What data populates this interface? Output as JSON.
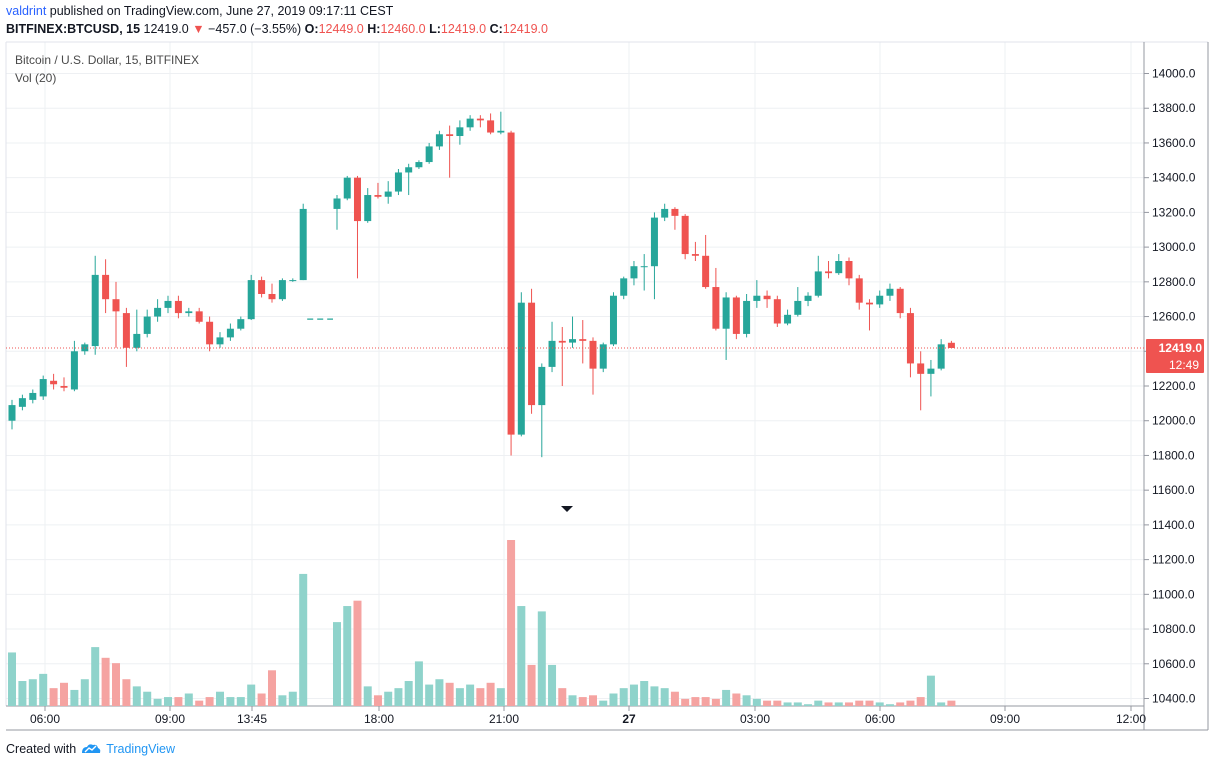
{
  "header": {
    "user": "valdrint",
    "published_text": "published on TradingView.com, June 27, 2019 09:17:11 CEST",
    "symbol": "BITFINEX:BTCUSD, 15",
    "last": "12419.0",
    "change": "−457.0 (−3.55%)",
    "o_label": "O:",
    "o_value": "12449.0",
    "h_label": "H:",
    "h_value": "12460.0",
    "l_label": "L:",
    "l_value": "12419.0",
    "c_label": "C:",
    "c_value": "12419.0"
  },
  "legend": {
    "title": "Bitcoin / U.S. Dollar, 15, BITFINEX",
    "volume": "Vol (20)"
  },
  "price_badge": {
    "price": "12419.0",
    "countdown": "12:49"
  },
  "footer": {
    "created_with": "Created with",
    "brand": "TradingView"
  },
  "colors": {
    "up": "#26a69a",
    "down": "#ef5350",
    "up_vol": "#8fd3cb",
    "down_vol": "#f5a3a1",
    "grid": "#eef0f3"
  },
  "chart_data": {
    "type": "candlestick",
    "interval": "15",
    "y_ticks": [
      10400,
      10600,
      10800,
      11000,
      11200,
      11400,
      11600,
      11800,
      12000,
      12200,
      12400,
      12600,
      12800,
      13000,
      13200,
      13400,
      13600,
      13800,
      14000
    ],
    "ylim": [
      10360,
      14110
    ],
    "x_tick_labels": [
      "06:00",
      "09:00",
      "13:45",
      "18:00",
      "21:00",
      "27",
      "03:00",
      "06:00",
      "09:00",
      "12:00"
    ],
    "current_price": 12419.0,
    "gap_after_index": 28,
    "gap_level": 12585,
    "candles": [
      {
        "o": 12000,
        "h": 12120,
        "l": 11950,
        "c": 12090
      },
      {
        "o": 12080,
        "h": 12150,
        "l": 12060,
        "c": 12130
      },
      {
        "o": 12120,
        "h": 12180,
        "l": 12100,
        "c": 12160
      },
      {
        "o": 12140,
        "h": 12260,
        "l": 12120,
        "c": 12240
      },
      {
        "o": 12230,
        "h": 12270,
        "l": 12180,
        "c": 12210
      },
      {
        "o": 12200,
        "h": 12250,
        "l": 12170,
        "c": 12190
      },
      {
        "o": 12180,
        "h": 12460,
        "l": 12170,
        "c": 12400
      },
      {
        "o": 12400,
        "h": 12450,
        "l": 12380,
        "c": 12440
      },
      {
        "o": 12430,
        "h": 12950,
        "l": 12380,
        "c": 12840
      },
      {
        "o": 12840,
        "h": 12930,
        "l": 12620,
        "c": 12700
      },
      {
        "o": 12700,
        "h": 12800,
        "l": 12420,
        "c": 12630
      },
      {
        "o": 12620,
        "h": 12650,
        "l": 12310,
        "c": 12420
      },
      {
        "o": 12420,
        "h": 12640,
        "l": 12400,
        "c": 12500
      },
      {
        "o": 12500,
        "h": 12640,
        "l": 12480,
        "c": 12600
      },
      {
        "o": 12600,
        "h": 12700,
        "l": 12570,
        "c": 12650
      },
      {
        "o": 12650,
        "h": 12720,
        "l": 12620,
        "c": 12690
      },
      {
        "o": 12690,
        "h": 12720,
        "l": 12590,
        "c": 12620
      },
      {
        "o": 12620,
        "h": 12650,
        "l": 12600,
        "c": 12630
      },
      {
        "o": 12630,
        "h": 12650,
        "l": 12560,
        "c": 12570
      },
      {
        "o": 12570,
        "h": 12600,
        "l": 12400,
        "c": 12440
      },
      {
        "o": 12440,
        "h": 12510,
        "l": 12420,
        "c": 12480
      },
      {
        "o": 12480,
        "h": 12560,
        "l": 12460,
        "c": 12530
      },
      {
        "o": 12530,
        "h": 12600,
        "l": 12520,
        "c": 12585
      },
      {
        "o": 12585,
        "h": 12840,
        "l": 12580,
        "c": 12810
      },
      {
        "o": 12810,
        "h": 12830,
        "l": 12710,
        "c": 12730
      },
      {
        "o": 12730,
        "h": 12790,
        "l": 12680,
        "c": 12700
      },
      {
        "o": 12700,
        "h": 12820,
        "l": 12690,
        "c": 12810
      },
      {
        "o": 12810,
        "h": 12820,
        "l": 12800,
        "c": 12810
      },
      {
        "o": 12810,
        "h": 13250,
        "l": 12810,
        "c": 13220
      },
      {
        "o": 13220,
        "h": 13300,
        "l": 13100,
        "c": 13280
      },
      {
        "o": 13280,
        "h": 13410,
        "l": 13270,
        "c": 13400
      },
      {
        "o": 13400,
        "h": 13410,
        "l": 12820,
        "c": 13150
      },
      {
        "o": 13150,
        "h": 13340,
        "l": 13140,
        "c": 13300
      },
      {
        "o": 13300,
        "h": 13370,
        "l": 13280,
        "c": 13290
      },
      {
        "o": 13290,
        "h": 13380,
        "l": 13250,
        "c": 13320
      },
      {
        "o": 13320,
        "h": 13450,
        "l": 13300,
        "c": 13430
      },
      {
        "o": 13430,
        "h": 13480,
        "l": 13300,
        "c": 13460
      },
      {
        "o": 13460,
        "h": 13500,
        "l": 13450,
        "c": 13490
      },
      {
        "o": 13490,
        "h": 13600,
        "l": 13480,
        "c": 13580
      },
      {
        "o": 13580,
        "h": 13670,
        "l": 13560,
        "c": 13650
      },
      {
        "o": 13650,
        "h": 13700,
        "l": 13400,
        "c": 13640
      },
      {
        "o": 13640,
        "h": 13730,
        "l": 13590,
        "c": 13690
      },
      {
        "o": 13690,
        "h": 13760,
        "l": 13670,
        "c": 13740
      },
      {
        "o": 13740,
        "h": 13760,
        "l": 13690,
        "c": 13730
      },
      {
        "o": 13730,
        "h": 13770,
        "l": 13650,
        "c": 13660
      },
      {
        "o": 13660,
        "h": 13780,
        "l": 13650,
        "c": 13670
      },
      {
        "o": 13660,
        "h": 13670,
        "l": 11800,
        "c": 11920
      },
      {
        "o": 11920,
        "h": 12740,
        "l": 11910,
        "c": 12680
      },
      {
        "o": 12680,
        "h": 12760,
        "l": 12040,
        "c": 12090
      },
      {
        "o": 12090,
        "h": 12330,
        "l": 11790,
        "c": 12310
      },
      {
        "o": 12310,
        "h": 12570,
        "l": 12280,
        "c": 12460
      },
      {
        "o": 12460,
        "h": 12540,
        "l": 12200,
        "c": 12450
      },
      {
        "o": 12450,
        "h": 12600,
        "l": 12420,
        "c": 12470
      },
      {
        "o": 12470,
        "h": 12580,
        "l": 12330,
        "c": 12460
      },
      {
        "o": 12460,
        "h": 12480,
        "l": 12150,
        "c": 12300
      },
      {
        "o": 12300,
        "h": 12450,
        "l": 12280,
        "c": 12440
      },
      {
        "o": 12440,
        "h": 12740,
        "l": 12430,
        "c": 12720
      },
      {
        "o": 12720,
        "h": 12830,
        "l": 12700,
        "c": 12820
      },
      {
        "o": 12820,
        "h": 12920,
        "l": 12780,
        "c": 12890
      },
      {
        "o": 12890,
        "h": 12960,
        "l": 12750,
        "c": 12890
      },
      {
        "o": 12890,
        "h": 13200,
        "l": 12700,
        "c": 13170
      },
      {
        "o": 13170,
        "h": 13250,
        "l": 13150,
        "c": 13220
      },
      {
        "o": 13220,
        "h": 13230,
        "l": 13100,
        "c": 13180
      },
      {
        "o": 13180,
        "h": 13190,
        "l": 12930,
        "c": 12960
      },
      {
        "o": 12960,
        "h": 13030,
        "l": 12920,
        "c": 12950
      },
      {
        "o": 12950,
        "h": 13070,
        "l": 12760,
        "c": 12770
      },
      {
        "o": 12770,
        "h": 12880,
        "l": 12520,
        "c": 12530
      },
      {
        "o": 12530,
        "h": 12740,
        "l": 12350,
        "c": 12710
      },
      {
        "o": 12710,
        "h": 12720,
        "l": 12470,
        "c": 12500
      },
      {
        "o": 12500,
        "h": 12730,
        "l": 12480,
        "c": 12690
      },
      {
        "o": 12690,
        "h": 12810,
        "l": 12650,
        "c": 12720
      },
      {
        "o": 12720,
        "h": 12750,
        "l": 12650,
        "c": 12700
      },
      {
        "o": 12700,
        "h": 12720,
        "l": 12540,
        "c": 12560
      },
      {
        "o": 12560,
        "h": 12640,
        "l": 12550,
        "c": 12610
      },
      {
        "o": 12610,
        "h": 12770,
        "l": 12600,
        "c": 12690
      },
      {
        "o": 12690,
        "h": 12740,
        "l": 12660,
        "c": 12720
      },
      {
        "o": 12720,
        "h": 12950,
        "l": 12710,
        "c": 12860
      },
      {
        "o": 12860,
        "h": 12920,
        "l": 12820,
        "c": 12850
      },
      {
        "o": 12850,
        "h": 12960,
        "l": 12840,
        "c": 12920
      },
      {
        "o": 12920,
        "h": 12940,
        "l": 12780,
        "c": 12820
      },
      {
        "o": 12820,
        "h": 12840,
        "l": 12640,
        "c": 12680
      },
      {
        "o": 12680,
        "h": 12700,
        "l": 12520,
        "c": 12670
      },
      {
        "o": 12670,
        "h": 12750,
        "l": 12650,
        "c": 12720
      },
      {
        "o": 12720,
        "h": 12790,
        "l": 12690,
        "c": 12760
      },
      {
        "o": 12760,
        "h": 12770,
        "l": 12590,
        "c": 12620
      },
      {
        "o": 12620,
        "h": 12650,
        "l": 12250,
        "c": 12330
      },
      {
        "o": 12330,
        "h": 12400,
        "l": 12060,
        "c": 12270
      },
      {
        "o": 12270,
        "h": 12350,
        "l": 12140,
        "c": 12300
      },
      {
        "o": 12300,
        "h": 12470,
        "l": 12290,
        "c": 12440
      },
      {
        "o": 12449,
        "h": 12460,
        "l": 12419,
        "c": 12419
      }
    ],
    "volumes": [
      300,
      140,
      150,
      180,
      100,
      130,
      90,
      150,
      330,
      270,
      240,
      150,
      110,
      80,
      40,
      50,
      50,
      70,
      30,
      50,
      80,
      50,
      50,
      120,
      70,
      200,
      60,
      80,
      740,
      470,
      560,
      590,
      110,
      60,
      80,
      100,
      140,
      250,
      120,
      150,
      130,
      100,
      120,
      100,
      130,
      100,
      930,
      560,
      230,
      530,
      230,
      100,
      60,
      50,
      60,
      30,
      70,
      100,
      120,
      140,
      110,
      100,
      80,
      40,
      50,
      50,
      40,
      90,
      70,
      60,
      40,
      30,
      30,
      20,
      20,
      10,
      30,
      20,
      20,
      20,
      30,
      30,
      20,
      10,
      20,
      30,
      50,
      170,
      20,
      30,
      10
    ]
  }
}
